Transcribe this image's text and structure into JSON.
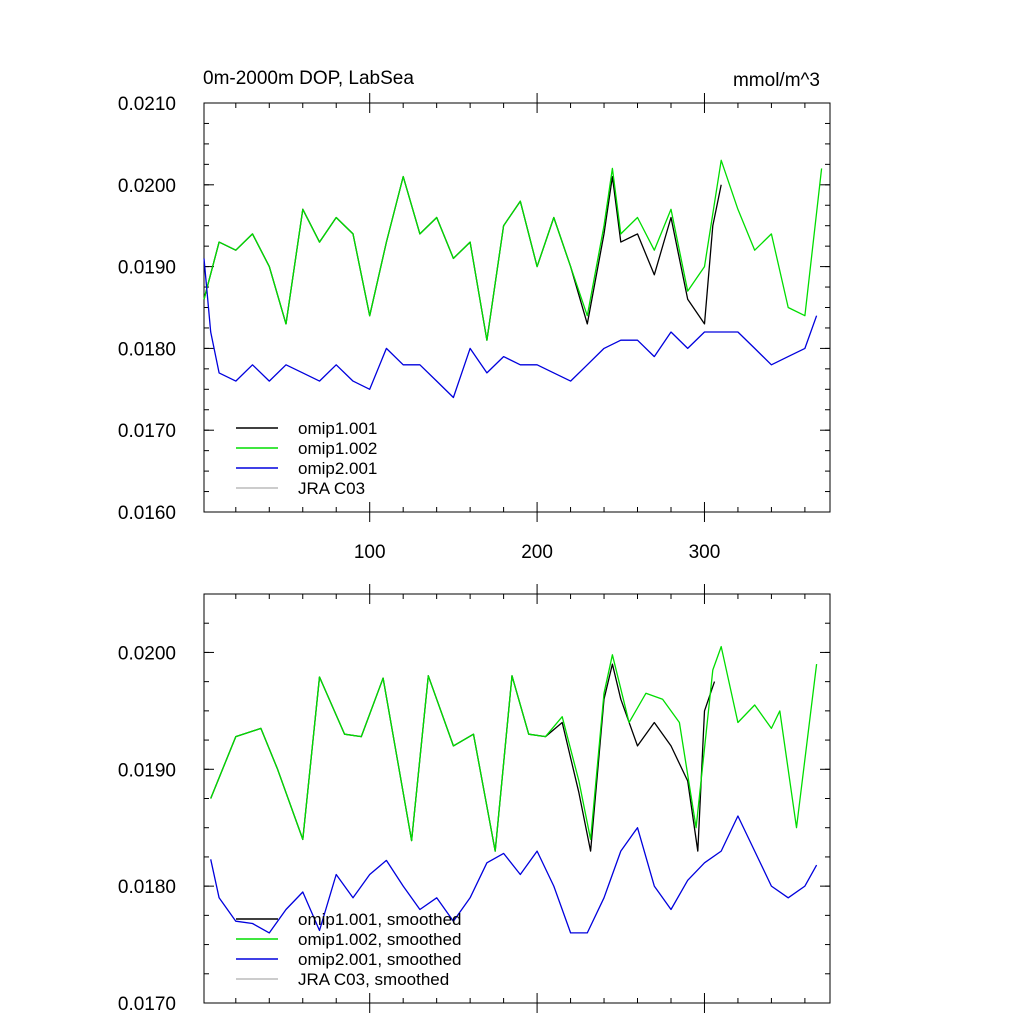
{
  "chart_data": [
    {
      "type": "line",
      "title_left": "0m-2000m DOP, LabSea",
      "title_right": "mmol/m^3",
      "xlim": [
        1,
        375
      ],
      "ylim": [
        0.016,
        0.021
      ],
      "x_ticks": [
        100,
        200,
        300
      ],
      "x_tick_labels": [
        "100",
        "200",
        "300"
      ],
      "y_ticks": [
        0.016,
        0.017,
        0.018,
        0.019,
        0.02,
        0.021
      ],
      "y_tick_labels": [
        "0.0160",
        "0.0170",
        "0.0180",
        "0.0190",
        "0.0200",
        "0.0210"
      ],
      "legend_position": "bottom-left",
      "series": [
        {
          "name": "omip1.001",
          "color": "#000000",
          "x": [
            1,
            10,
            20,
            30,
            40,
            50,
            60,
            70,
            80,
            90,
            100,
            110,
            120,
            130,
            140,
            150,
            160,
            170,
            180,
            190,
            200,
            210,
            220,
            230,
            240,
            245,
            250,
            260,
            270,
            280,
            290,
            300,
            305,
            310
          ],
          "values": [
            0.0186,
            0.0193,
            0.0192,
            0.0194,
            0.019,
            0.0183,
            0.0197,
            0.0193,
            0.0196,
            0.0194,
            0.0184,
            0.0193,
            0.0201,
            0.0194,
            0.0196,
            0.0191,
            0.0193,
            0.0181,
            0.0195,
            0.0198,
            0.019,
            0.0196,
            0.019,
            0.0183,
            0.0194,
            0.0201,
            0.0193,
            0.0194,
            0.0189,
            0.0196,
            0.0186,
            0.0183,
            0.0195,
            0.02
          ]
        },
        {
          "name": "omip1.002",
          "color": "#00dd00",
          "x": [
            1,
            10,
            20,
            30,
            40,
            50,
            60,
            70,
            80,
            90,
            100,
            110,
            120,
            130,
            140,
            150,
            160,
            170,
            180,
            190,
            200,
            210,
            220,
            230,
            240,
            245,
            250,
            260,
            270,
            280,
            290,
            300,
            310,
            320,
            330,
            340,
            350,
            360,
            370
          ],
          "values": [
            0.0186,
            0.0193,
            0.0192,
            0.0194,
            0.019,
            0.0183,
            0.0197,
            0.0193,
            0.0196,
            0.0194,
            0.0184,
            0.0193,
            0.0201,
            0.0194,
            0.0196,
            0.0191,
            0.0193,
            0.0181,
            0.0195,
            0.0198,
            0.019,
            0.0196,
            0.019,
            0.0184,
            0.0195,
            0.0202,
            0.0194,
            0.0196,
            0.0192,
            0.0197,
            0.0187,
            0.019,
            0.0203,
            0.0197,
            0.0192,
            0.0194,
            0.0185,
            0.0184,
            0.0202
          ]
        },
        {
          "name": "omip2.001",
          "color": "#0000dd",
          "x": [
            1,
            5,
            10,
            20,
            30,
            40,
            50,
            60,
            70,
            80,
            90,
            100,
            110,
            120,
            130,
            140,
            150,
            160,
            170,
            180,
            190,
            200,
            210,
            220,
            230,
            240,
            250,
            260,
            270,
            280,
            290,
            300,
            310,
            320,
            330,
            340,
            350,
            360,
            367
          ],
          "values": [
            0.0191,
            0.0182,
            0.0177,
            0.0176,
            0.0178,
            0.0176,
            0.0178,
            0.0177,
            0.0176,
            0.0178,
            0.0176,
            0.0175,
            0.018,
            0.0178,
            0.0178,
            0.0176,
            0.0174,
            0.018,
            0.0177,
            0.0179,
            0.0178,
            0.0178,
            0.0177,
            0.0176,
            0.0178,
            0.018,
            0.0181,
            0.0181,
            0.0179,
            0.0182,
            0.018,
            0.0182,
            0.0182,
            0.0182,
            0.018,
            0.0178,
            0.0179,
            0.018,
            0.0184
          ]
        },
        {
          "name": "JRA C03",
          "color": "#bbbbbb",
          "x": [],
          "values": []
        }
      ]
    },
    {
      "type": "line",
      "xlim": [
        1,
        375
      ],
      "ylim": [
        0.017,
        0.0205
      ],
      "x_ticks": [
        100,
        200,
        300
      ],
      "y_ticks": [
        0.017,
        0.018,
        0.019,
        0.02
      ],
      "y_tick_labels": [
        "0.0170",
        "0.0180",
        "0.0190",
        "0.0200"
      ],
      "legend_position": "bottom-left",
      "series": [
        {
          "name": "omip1.001, smoothed",
          "color": "#000000",
          "x": [
            5,
            20,
            35,
            45,
            60,
            70,
            85,
            95,
            108,
            125,
            135,
            150,
            162,
            175,
            185,
            195,
            205,
            215,
            225,
            232,
            240,
            245,
            250,
            260,
            270,
            280,
            290,
            296,
            300,
            306
          ],
          "values": [
            0.01875,
            0.01928,
            0.01935,
            0.019,
            0.0184,
            0.01979,
            0.0193,
            0.01928,
            0.01978,
            0.01839,
            0.0198,
            0.0192,
            0.0193,
            0.0183,
            0.0198,
            0.0193,
            0.01928,
            0.0194,
            0.0188,
            0.0183,
            0.0196,
            0.0199,
            0.0196,
            0.0192,
            0.0194,
            0.0192,
            0.0189,
            0.0183,
            0.0195,
            0.01975
          ]
        },
        {
          "name": "omip1.002, smoothed",
          "color": "#00dd00",
          "x": [
            5,
            20,
            35,
            45,
            60,
            70,
            85,
            95,
            108,
            125,
            135,
            150,
            162,
            175,
            185,
            195,
            205,
            215,
            225,
            232,
            240,
            245,
            255,
            265,
            275,
            285,
            295,
            305,
            310,
            320,
            330,
            340,
            345,
            355,
            367
          ],
          "values": [
            0.01875,
            0.01928,
            0.01935,
            0.019,
            0.0184,
            0.01979,
            0.0193,
            0.01928,
            0.01978,
            0.01839,
            0.0198,
            0.0192,
            0.0193,
            0.0183,
            0.0198,
            0.0193,
            0.01928,
            0.01945,
            0.0189,
            0.0184,
            0.01965,
            0.01998,
            0.0194,
            0.01965,
            0.0196,
            0.0194,
            0.0185,
            0.01985,
            0.02005,
            0.0194,
            0.01955,
            0.01935,
            0.0195,
            0.0185,
            0.0199
          ]
        },
        {
          "name": "omip2.001, smoothed",
          "color": "#0000dd",
          "x": [
            5,
            10,
            20,
            30,
            40,
            50,
            60,
            70,
            80,
            90,
            100,
            110,
            120,
            130,
            140,
            150,
            160,
            170,
            180,
            190,
            200,
            210,
            220,
            230,
            240,
            250,
            260,
            270,
            280,
            290,
            300,
            310,
            320,
            330,
            340,
            350,
            360,
            367
          ],
          "values": [
            0.01823,
            0.0179,
            0.0177,
            0.01768,
            0.0176,
            0.0178,
            0.01795,
            0.01762,
            0.0181,
            0.0179,
            0.0181,
            0.01822,
            0.018,
            0.0178,
            0.0179,
            0.0177,
            0.0179,
            0.0182,
            0.01828,
            0.0181,
            0.0183,
            0.018,
            0.0176,
            0.0176,
            0.0179,
            0.0183,
            0.0185,
            0.018,
            0.0178,
            0.01805,
            0.0182,
            0.0183,
            0.0186,
            0.0183,
            0.018,
            0.0179,
            0.018,
            0.01818
          ]
        },
        {
          "name": "JRA C03, smoothed",
          "color": "#bbbbbb",
          "x": [],
          "values": []
        }
      ]
    }
  ]
}
